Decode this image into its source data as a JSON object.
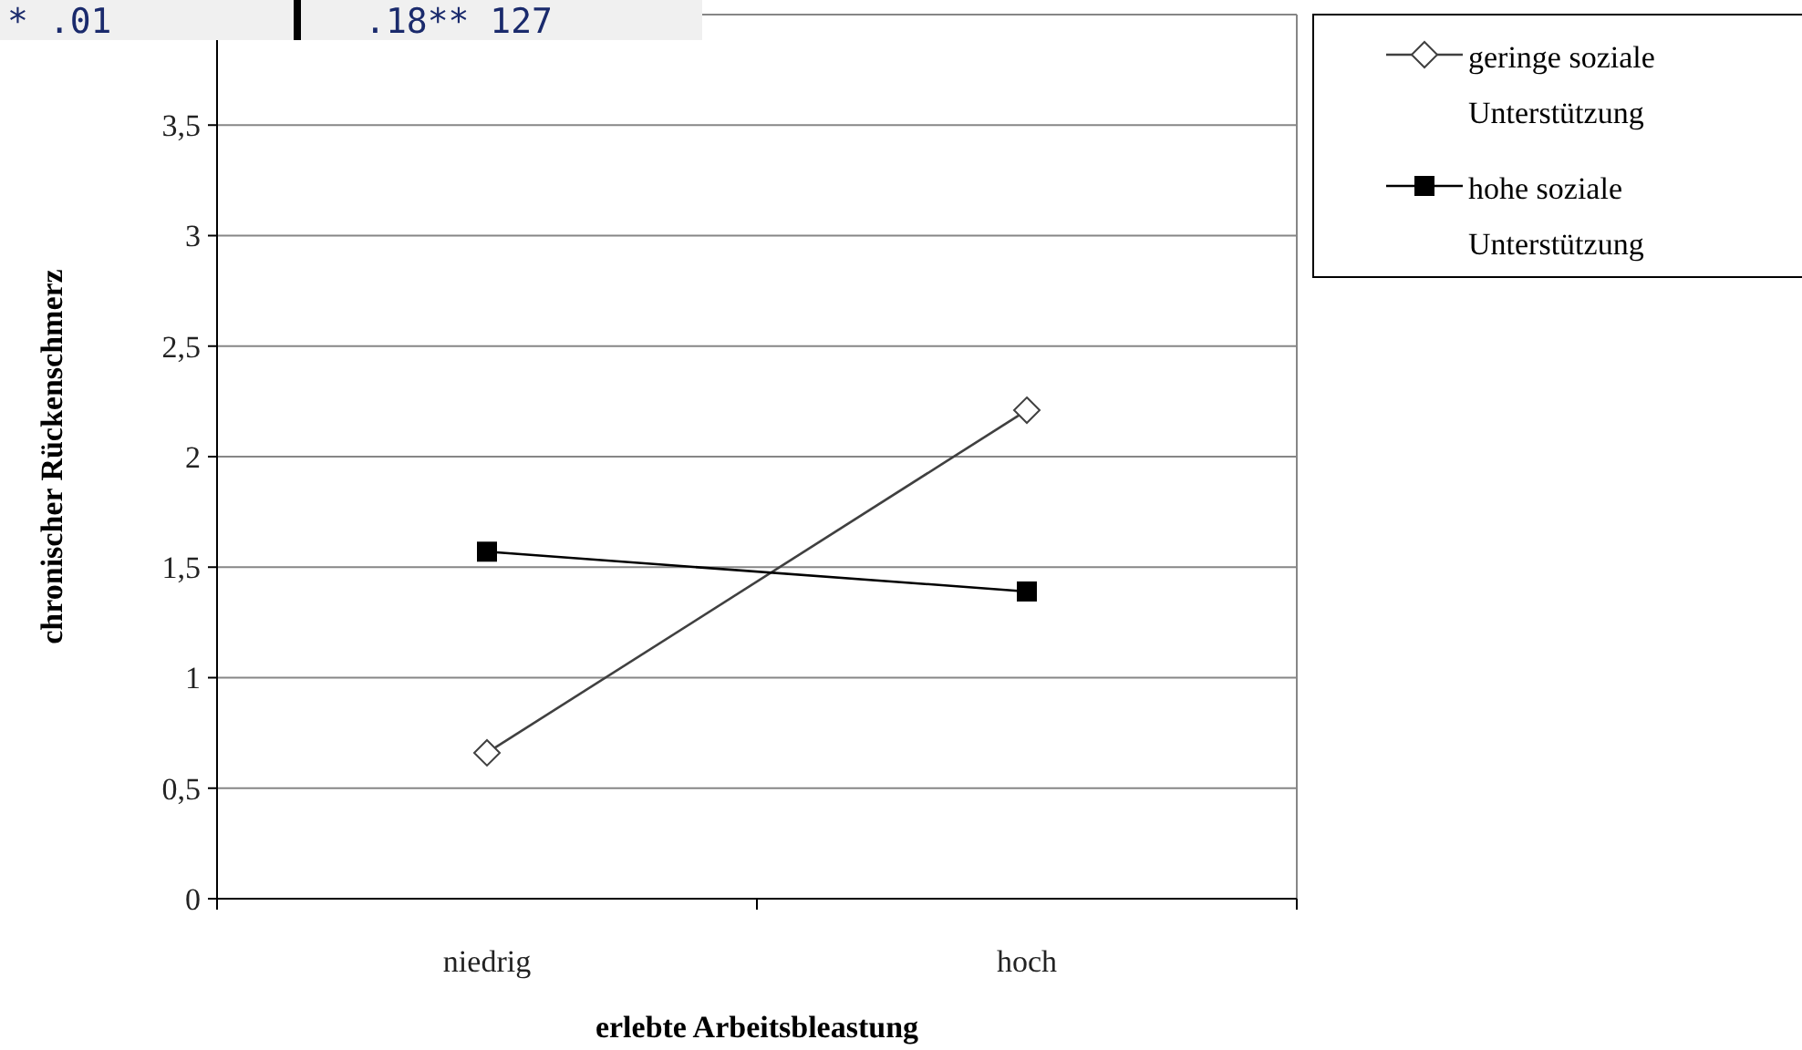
{
  "chart_data": {
    "type": "line",
    "xlabel": "erlebte Arbeitsbleastung",
    "ylabel": "chronischer Rückenschmerz",
    "categories": [
      "niedrig",
      "hoch"
    ],
    "series": [
      {
        "name": "geringe soziale Unterstützung",
        "color": "#404040",
        "values": [
          0.66,
          2.21
        ],
        "marker": "diamond"
      },
      {
        "name": "hohe soziale Unterstützung",
        "color": "#000000",
        "values": [
          1.57,
          1.39
        ],
        "marker": "square"
      }
    ],
    "ylim": [
      0,
      4
    ],
    "yticks": [
      0,
      {
        "value": 0.5,
        "label": "0,5"
      },
      1,
      {
        "value": 1.5,
        "label": "1,5"
      },
      2,
      {
        "value": 2.5,
        "label": "2,5"
      },
      3,
      {
        "value": 3.5,
        "label": "3,5"
      }
    ],
    "grid": "y",
    "legend": "top right",
    "line_style": "solid",
    "annotations": [
      "* .01",
      ".18** 127"
    ]
  }
}
